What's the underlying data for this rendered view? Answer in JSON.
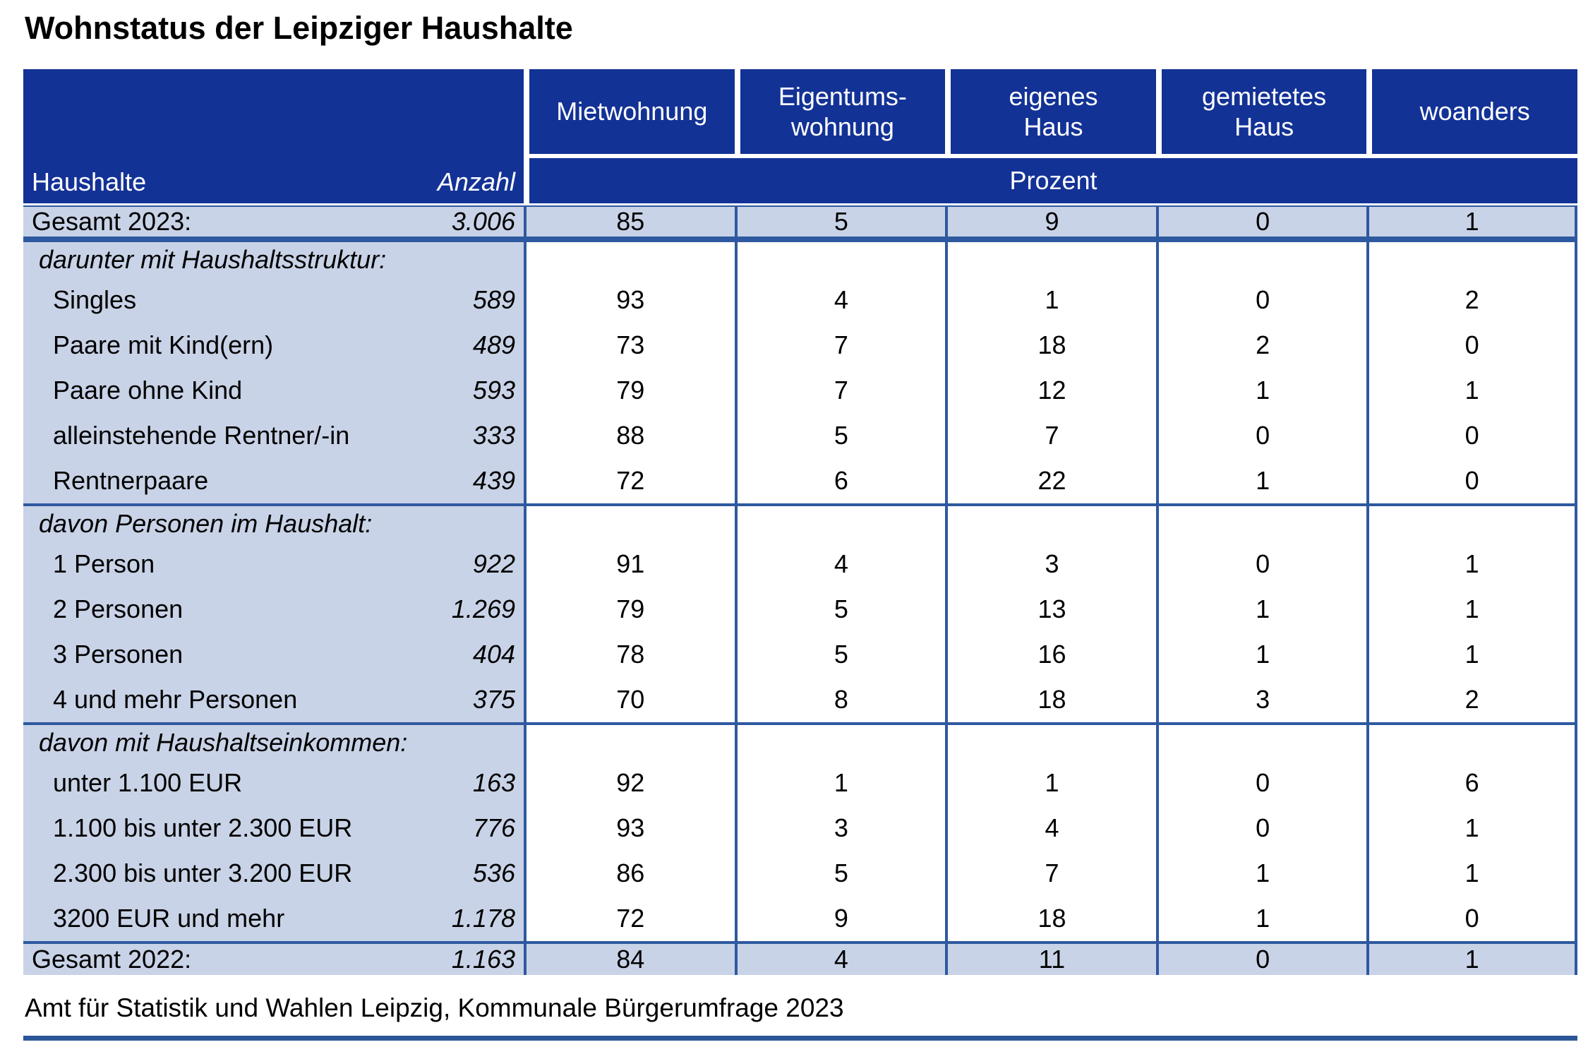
{
  "title": "Wohnstatus der Leipziger Haushalte",
  "table": {
    "left_header": {
      "label": "Haushalte",
      "anzahl": "Anzahl"
    },
    "col_headers": [
      "Mietwohnung",
      "Eigentums-\nwohnung",
      "eigenes\nHaus",
      "gemietetes\nHaus",
      "woanders"
    ],
    "unit_band": "Prozent",
    "rows": [
      {
        "type": "total",
        "label": "Gesamt 2023:",
        "anzahl": "3.006",
        "values": [
          "85",
          "5",
          "9",
          "0",
          "1"
        ]
      },
      {
        "type": "section",
        "label": "darunter mit Haushaltsstruktur:"
      },
      {
        "type": "item",
        "label": "Singles",
        "anzahl": "589",
        "values": [
          "93",
          "4",
          "1",
          "0",
          "2"
        ]
      },
      {
        "type": "item",
        "label": "Paare mit Kind(ern)",
        "anzahl": "489",
        "values": [
          "73",
          "7",
          "18",
          "2",
          "0"
        ]
      },
      {
        "type": "item",
        "label": "Paare ohne Kind",
        "anzahl": "593",
        "values": [
          "79",
          "7",
          "12",
          "1",
          "1"
        ]
      },
      {
        "type": "item",
        "label": "alleinstehende Rentner/-in",
        "anzahl": "333",
        "values": [
          "88",
          "5",
          "7",
          "0",
          "0"
        ]
      },
      {
        "type": "item",
        "label": "Rentnerpaare",
        "anzahl": "439",
        "values": [
          "72",
          "6",
          "22",
          "1",
          "0"
        ]
      },
      {
        "type": "section",
        "label": "davon Personen im Haushalt:"
      },
      {
        "type": "item",
        "label": "1 Person",
        "anzahl": "922",
        "values": [
          "91",
          "4",
          "3",
          "0",
          "1"
        ]
      },
      {
        "type": "item",
        "label": "2 Personen",
        "anzahl": "1.269",
        "values": [
          "79",
          "5",
          "13",
          "1",
          "1"
        ]
      },
      {
        "type": "item",
        "label": "3 Personen",
        "anzahl": "404",
        "values": [
          "78",
          "5",
          "16",
          "1",
          "1"
        ]
      },
      {
        "type": "item",
        "label": "4 und mehr Personen",
        "anzahl": "375",
        "values": [
          "70",
          "8",
          "18",
          "3",
          "2"
        ]
      },
      {
        "type": "section",
        "label": "davon mit Haushaltseinkommen:"
      },
      {
        "type": "item",
        "label": "unter 1.100 EUR",
        "anzahl": "163",
        "values": [
          "92",
          "1",
          "1",
          "0",
          "6"
        ]
      },
      {
        "type": "item",
        "label": "1.100 bis unter 2.300 EUR",
        "anzahl": "776",
        "values": [
          "93",
          "3",
          "4",
          "0",
          "1"
        ]
      },
      {
        "type": "item",
        "label": "2.300 bis unter 3.200 EUR",
        "anzahl": "536",
        "values": [
          "86",
          "5",
          "7",
          "1",
          "1"
        ]
      },
      {
        "type": "item",
        "label": "3200 EUR und mehr",
        "anzahl": "1.178",
        "values": [
          "72",
          "9",
          "18",
          "1",
          "0"
        ]
      },
      {
        "type": "total",
        "label": "Gesamt 2022:",
        "anzahl": "1.163",
        "values": [
          "84",
          "4",
          "11",
          "0",
          "1"
        ]
      }
    ]
  },
  "source": "Amt für Statistik und Wahlen Leipzig, Kommunale Bürgerumfrage 2023",
  "colors": {
    "header_bg": "#133296",
    "header_text": "#ffffff",
    "stripe_bg": "#c9d3e7",
    "grid_border": "#2e59a0",
    "bottom_rule": "#2c5698"
  }
}
